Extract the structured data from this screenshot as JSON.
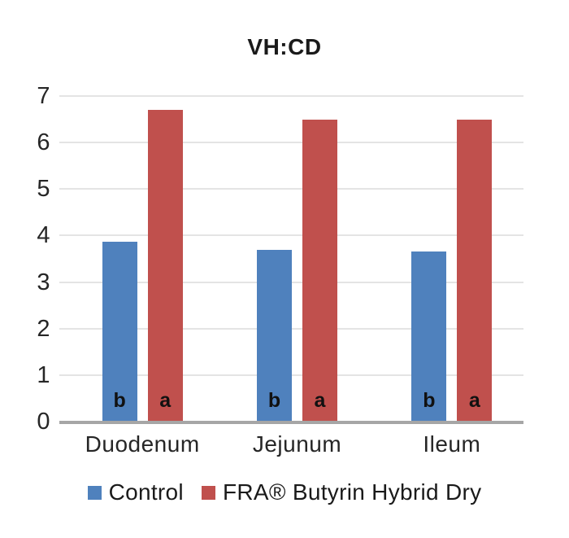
{
  "chart_data": {
    "type": "bar",
    "title": "VH:CD",
    "categories": [
      "Duodenum",
      "Jejunum",
      "Ileum"
    ],
    "series": [
      {
        "name": "Control",
        "color": "#4F81BD",
        "values": [
          3.86,
          3.7,
          3.65
        ],
        "bar_labels": [
          "b",
          "b",
          "b"
        ]
      },
      {
        "name": "FRA® Butyrin Hybrid Dry",
        "color": "#C0504D",
        "values": [
          6.7,
          6.5,
          6.5
        ],
        "bar_labels": [
          "a",
          "a",
          "a"
        ]
      }
    ],
    "xlabel": "",
    "ylabel": "",
    "ylim": [
      0,
      7
    ],
    "yticks": [
      0,
      1,
      2,
      3,
      4,
      5,
      6,
      7
    ],
    "grid": true,
    "legend_position": "bottom",
    "colors": {
      "gridline": "#E4E4E4",
      "axis_line": "#A6A6A6",
      "tick_text": "#262626",
      "category_text": "#262626",
      "legend_text": "#1A1A1A",
      "title_text": "#1A1A1A",
      "bar_letter": "#111111",
      "background": "#FFFFFF"
    }
  }
}
